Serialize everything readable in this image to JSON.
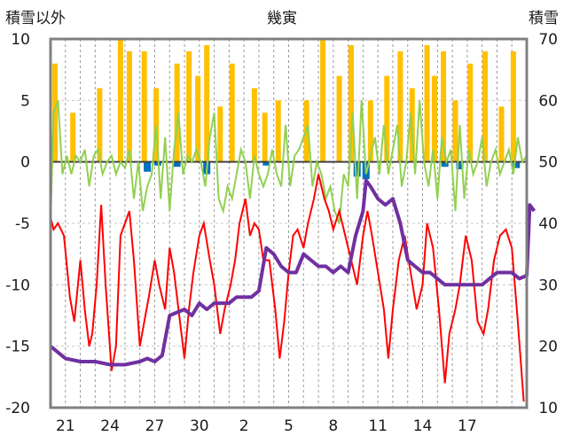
{
  "chart_data": {
    "type": "line",
    "title": "幾寅",
    "left_axis_label": "積雪以外",
    "right_axis_label": "積雪",
    "y_left": {
      "min": -20,
      "max": 10,
      "ticks": [
        10,
        5,
        0,
        -5,
        -10,
        -15,
        -20
      ]
    },
    "y_right": {
      "min": 10,
      "max": 70,
      "ticks": [
        70,
        60,
        50,
        40,
        30,
        20,
        10
      ]
    },
    "x": {
      "min": 0,
      "max": 32,
      "tick_positions": [
        1,
        4,
        7,
        10,
        13,
        16,
        19,
        22,
        25,
        28,
        31
      ],
      "tick_labels": [
        "21",
        "24",
        "27",
        "30",
        "2",
        "5",
        "8",
        "11",
        "14",
        "17",
        ""
      ]
    },
    "grid": {
      "horizontal": true,
      "vertical_dashed_daily": true
    },
    "colors": {
      "temperature": "#ff0000",
      "sunshine": "#ffc000",
      "wind": "#92d050",
      "snow_depth": "#7030a0",
      "precipitation": "#0070c0",
      "zero_line": "#404040",
      "frame": "#808080"
    },
    "series": {
      "temperature_points": [
        [
          0,
          -4.5
        ],
        [
          0.2,
          -5.5
        ],
        [
          0.5,
          -5
        ],
        [
          0.9,
          -6
        ],
        [
          1.3,
          -11
        ],
        [
          1.6,
          -13
        ],
        [
          2,
          -8
        ],
        [
          2.3,
          -12
        ],
        [
          2.6,
          -15
        ],
        [
          2.8,
          -14
        ],
        [
          3.1,
          -10
        ],
        [
          3.4,
          -3.5
        ],
        [
          3.7,
          -10
        ],
        [
          4.1,
          -17
        ],
        [
          4.4,
          -15
        ],
        [
          4.7,
          -6
        ],
        [
          5,
          -5
        ],
        [
          5.3,
          -4
        ],
        [
          5.6,
          -8
        ],
        [
          6,
          -15
        ],
        [
          6.3,
          -13
        ],
        [
          6.6,
          -11
        ],
        [
          7,
          -8
        ],
        [
          7.3,
          -10
        ],
        [
          7.7,
          -12
        ],
        [
          8,
          -7
        ],
        [
          8.3,
          -9
        ],
        [
          8.6,
          -12
        ],
        [
          9,
          -16
        ],
        [
          9.3,
          -12
        ],
        [
          9.6,
          -9
        ],
        [
          10,
          -6
        ],
        [
          10.3,
          -5
        ],
        [
          10.7,
          -8
        ],
        [
          11,
          -10
        ],
        [
          11.4,
          -14
        ],
        [
          11.7,
          -12
        ],
        [
          12.1,
          -10
        ],
        [
          12.4,
          -8
        ],
        [
          12.7,
          -5
        ],
        [
          13.1,
          -3
        ],
        [
          13.4,
          -6
        ],
        [
          13.7,
          -5
        ],
        [
          14,
          -5.5
        ],
        [
          14.3,
          -8
        ],
        [
          14.7,
          -8
        ],
        [
          15.1,
          -12
        ],
        [
          15.4,
          -16
        ],
        [
          15.7,
          -13
        ],
        [
          16,
          -9
        ],
        [
          16.3,
          -6
        ],
        [
          16.6,
          -5.5
        ],
        [
          17,
          -7
        ],
        [
          17.3,
          -5
        ],
        [
          17.7,
          -3
        ],
        [
          18,
          -1
        ],
        [
          18.4,
          -3
        ],
        [
          18.7,
          -4
        ],
        [
          19,
          -5.5
        ],
        [
          19.4,
          -4
        ],
        [
          19.8,
          -6
        ],
        [
          20.2,
          -8
        ],
        [
          20.6,
          -10
        ],
        [
          21,
          -6
        ],
        [
          21.3,
          -4
        ],
        [
          21.6,
          -6
        ],
        [
          22,
          -9
        ],
        [
          22.4,
          -12
        ],
        [
          22.7,
          -16
        ],
        [
          23,
          -12
        ],
        [
          23.4,
          -8
        ],
        [
          23.8,
          -6
        ],
        [
          24.2,
          -9
        ],
        [
          24.6,
          -12
        ],
        [
          25,
          -10
        ],
        [
          25.3,
          -5
        ],
        [
          25.7,
          -7
        ],
        [
          26.1,
          -12
        ],
        [
          26.5,
          -18
        ],
        [
          26.8,
          -14
        ],
        [
          27.2,
          -12
        ],
        [
          27.5,
          -10
        ],
        [
          27.9,
          -6
        ],
        [
          28.3,
          -8
        ],
        [
          28.7,
          -13
        ],
        [
          29.1,
          -14
        ],
        [
          29.4,
          -12
        ],
        [
          29.8,
          -8
        ],
        [
          30.2,
          -6
        ],
        [
          30.6,
          -5.5
        ],
        [
          31,
          -7
        ],
        [
          31.4,
          -13
        ],
        [
          31.8,
          -19.5
        ]
      ],
      "wind_points": [
        [
          0,
          -5
        ],
        [
          0.2,
          4
        ],
        [
          0.5,
          5
        ],
        [
          0.8,
          -1
        ],
        [
          1.1,
          0.5
        ],
        [
          1.4,
          -1
        ],
        [
          1.7,
          0.5
        ],
        [
          2,
          0
        ],
        [
          2.3,
          1
        ],
        [
          2.6,
          -2
        ],
        [
          2.9,
          0.5
        ],
        [
          3.2,
          1
        ],
        [
          3.5,
          -1
        ],
        [
          3.8,
          0
        ],
        [
          4.1,
          0.5
        ],
        [
          4.4,
          -1
        ],
        [
          4.7,
          0
        ],
        [
          5,
          -0.5
        ],
        [
          5.3,
          1
        ],
        [
          5.6,
          -3
        ],
        [
          5.9,
          0
        ],
        [
          6.2,
          -4
        ],
        [
          6.5,
          -2
        ],
        [
          6.8,
          -1
        ],
        [
          7.1,
          3
        ],
        [
          7.4,
          -3
        ],
        [
          7.7,
          2
        ],
        [
          8,
          -4
        ],
        [
          8.3,
          1
        ],
        [
          8.6,
          4
        ],
        [
          8.9,
          -1
        ],
        [
          9.2,
          0.5
        ],
        [
          9.5,
          0
        ],
        [
          9.8,
          1
        ],
        [
          10.1,
          0
        ],
        [
          10.4,
          -2
        ],
        [
          10.7,
          2
        ],
        [
          11,
          4
        ],
        [
          11.3,
          -3
        ],
        [
          11.6,
          -4
        ],
        [
          11.9,
          -2
        ],
        [
          12.2,
          -3
        ],
        [
          12.5,
          -1
        ],
        [
          12.8,
          1
        ],
        [
          13.1,
          0
        ],
        [
          13.4,
          -3
        ],
        [
          13.7,
          0.5
        ],
        [
          14,
          -1
        ],
        [
          14.3,
          -2
        ],
        [
          14.6,
          -1
        ],
        [
          14.9,
          1
        ],
        [
          15.2,
          -1
        ],
        [
          15.5,
          -2
        ],
        [
          15.8,
          3
        ],
        [
          16.1,
          -2
        ],
        [
          16.4,
          0.5
        ],
        [
          16.7,
          1
        ],
        [
          17,
          2
        ],
        [
          17.3,
          3
        ],
        [
          17.6,
          -2
        ],
        [
          17.9,
          0
        ],
        [
          18.2,
          -1
        ],
        [
          18.5,
          -3
        ],
        [
          18.8,
          -2
        ],
        [
          19.1,
          -4
        ],
        [
          19.4,
          -5
        ],
        [
          19.7,
          -1
        ],
        [
          20,
          -2
        ],
        [
          20.3,
          4
        ],
        [
          20.6,
          -3
        ],
        [
          20.9,
          5
        ],
        [
          21.2,
          -1
        ],
        [
          21.5,
          0.5
        ],
        [
          21.8,
          2
        ],
        [
          22.1,
          -1
        ],
        [
          22.4,
          3
        ],
        [
          22.7,
          -1
        ],
        [
          23,
          1
        ],
        [
          23.3,
          3
        ],
        [
          23.6,
          -2
        ],
        [
          23.9,
          0
        ],
        [
          24.2,
          4
        ],
        [
          24.5,
          -1
        ],
        [
          24.8,
          5
        ],
        [
          25.1,
          0
        ],
        [
          25.4,
          -2
        ],
        [
          25.7,
          1
        ],
        [
          26,
          -3
        ],
        [
          26.3,
          2
        ],
        [
          26.6,
          0
        ],
        [
          26.9,
          1
        ],
        [
          27.2,
          -4
        ],
        [
          27.5,
          3
        ],
        [
          27.8,
          -3
        ],
        [
          28.1,
          1
        ],
        [
          28.4,
          -1
        ],
        [
          28.7,
          0
        ],
        [
          29,
          2
        ],
        [
          29.3,
          -2
        ],
        [
          29.6,
          0
        ],
        [
          29.9,
          1
        ],
        [
          30.2,
          -1
        ],
        [
          30.5,
          0
        ],
        [
          30.8,
          1
        ],
        [
          31.1,
          -1
        ],
        [
          31.4,
          2
        ],
        [
          31.7,
          0
        ],
        [
          32,
          0.5
        ]
      ],
      "snow_depth_points": [
        [
          0,
          20
        ],
        [
          0.5,
          19
        ],
        [
          1,
          18
        ],
        [
          2,
          17.5
        ],
        [
          3,
          17.5
        ],
        [
          4,
          17
        ],
        [
          5,
          17
        ],
        [
          6,
          17.5
        ],
        [
          6.5,
          18
        ],
        [
          7,
          17.5
        ],
        [
          7.5,
          18.5
        ],
        [
          8,
          25
        ],
        [
          8.5,
          25.5
        ],
        [
          9,
          26
        ],
        [
          9.5,
          25
        ],
        [
          10,
          27
        ],
        [
          10.5,
          26
        ],
        [
          11,
          27
        ],
        [
          11.5,
          27
        ],
        [
          12,
          27
        ],
        [
          12.5,
          28
        ],
        [
          13,
          28
        ],
        [
          13.5,
          28
        ],
        [
          14,
          29
        ],
        [
          14.5,
          36
        ],
        [
          15,
          35
        ],
        [
          15.5,
          33
        ],
        [
          16,
          32
        ],
        [
          16.5,
          32
        ],
        [
          17,
          35
        ],
        [
          17.5,
          34
        ],
        [
          18,
          33
        ],
        [
          18.5,
          33
        ],
        [
          19,
          32
        ],
        [
          19.5,
          33
        ],
        [
          20,
          32
        ],
        [
          20.5,
          38
        ],
        [
          21,
          42
        ],
        [
          21.2,
          47
        ],
        [
          21.5,
          46
        ],
        [
          22,
          44
        ],
        [
          22.5,
          43
        ],
        [
          23,
          44
        ],
        [
          23.5,
          40
        ],
        [
          24,
          34
        ],
        [
          24.5,
          33
        ],
        [
          25,
          32
        ],
        [
          25.5,
          32
        ],
        [
          26,
          31
        ],
        [
          26.5,
          30
        ],
        [
          27,
          30
        ],
        [
          27.5,
          30
        ],
        [
          28,
          30
        ],
        [
          28.5,
          30
        ],
        [
          29,
          30
        ],
        [
          29.5,
          31
        ],
        [
          30,
          32
        ],
        [
          30.5,
          32
        ],
        [
          31,
          32
        ],
        [
          31.5,
          31
        ],
        [
          32,
          31.5
        ],
        [
          32.2,
          43
        ],
        [
          32.5,
          42
        ]
      ],
      "sunshine_days": [
        {
          "x": 0.3,
          "v": 8
        },
        {
          "x": 1.5,
          "v": 4
        },
        {
          "x": 3.3,
          "v": 6
        },
        {
          "x": 4.7,
          "v": 10
        },
        {
          "x": 5.3,
          "v": 9
        },
        {
          "x": 6.3,
          "v": 9
        },
        {
          "x": 7.1,
          "v": 6
        },
        {
          "x": 8.5,
          "v": 8
        },
        {
          "x": 9.3,
          "v": 9
        },
        {
          "x": 9.9,
          "v": 7
        },
        {
          "x": 10.5,
          "v": 9.5
        },
        {
          "x": 11.4,
          "v": 4.5
        },
        {
          "x": 12.2,
          "v": 8
        },
        {
          "x": 13.7,
          "v": 6
        },
        {
          "x": 14.4,
          "v": 4
        },
        {
          "x": 15.3,
          "v": 5
        },
        {
          "x": 17.2,
          "v": 5
        },
        {
          "x": 18.3,
          "v": 10
        },
        {
          "x": 19.4,
          "v": 7
        },
        {
          "x": 20.2,
          "v": 9.5
        },
        {
          "x": 21.5,
          "v": 5
        },
        {
          "x": 22.6,
          "v": 7
        },
        {
          "x": 23.5,
          "v": 9
        },
        {
          "x": 24.3,
          "v": 6
        },
        {
          "x": 25.3,
          "v": 9.5
        },
        {
          "x": 25.8,
          "v": 7
        },
        {
          "x": 26.4,
          "v": 9
        },
        {
          "x": 27.2,
          "v": 5
        },
        {
          "x": 28.2,
          "v": 8
        },
        {
          "x": 29.2,
          "v": 9
        },
        {
          "x": 30.3,
          "v": 4.5
        },
        {
          "x": 31.1,
          "v": 9
        }
      ],
      "precipitation_days": [
        {
          "x": 6.5,
          "v": -0.8
        },
        {
          "x": 7.2,
          "v": -0.3
        },
        {
          "x": 8.5,
          "v": -0.4
        },
        {
          "x": 10.5,
          "v": -1.0
        },
        {
          "x": 14.5,
          "v": -0.3
        },
        {
          "x": 20.6,
          "v": -1.2
        },
        {
          "x": 21.2,
          "v": -1.4
        },
        {
          "x": 26.5,
          "v": -0.4
        },
        {
          "x": 27.5,
          "v": -0.6
        },
        {
          "x": 31.3,
          "v": -0.5
        }
      ]
    }
  }
}
